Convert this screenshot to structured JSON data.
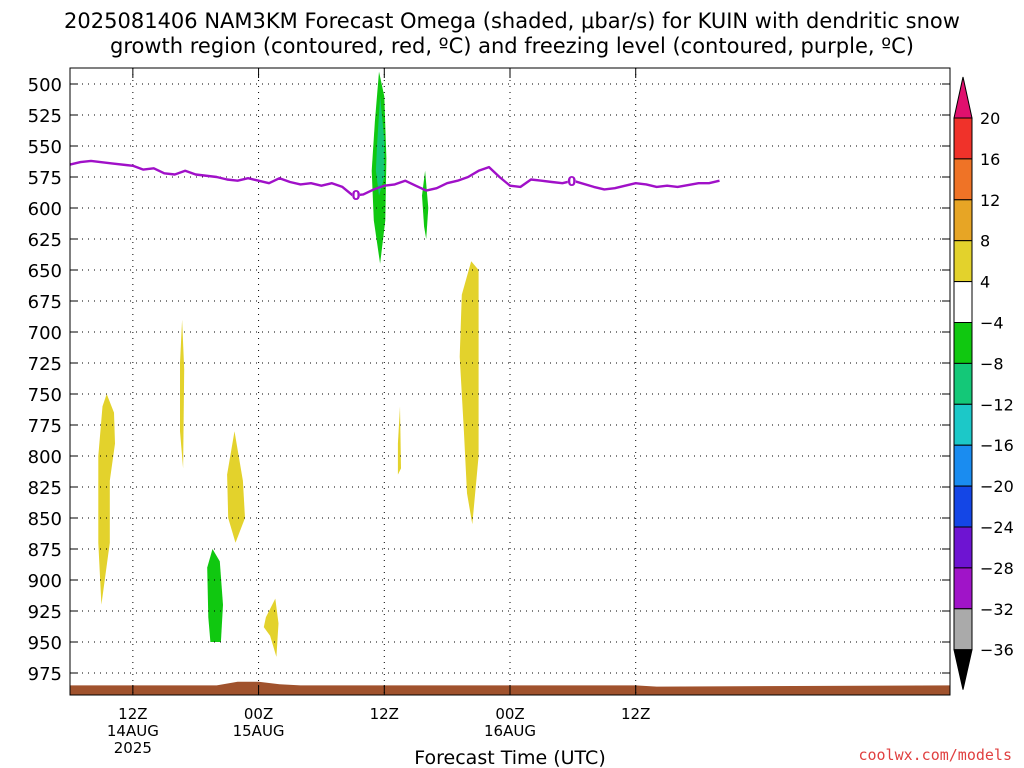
{
  "title_line1": "2025081406 NAM3KM Forecast Omega (shaded, μbar/s) for KUIN with dendritic snow",
  "title_line2": "growth region (contoured, red, ºC) and freezing level (contoured, purple, ºC)",
  "watermark": "coolwx.com/models",
  "chart_data": {
    "type": "heatmap",
    "title": "2025081406 NAM3KM Forecast Omega (shaded, μbar/s) for KUIN with dendritic snow growth region (contoured, red, ºC) and freezing level (contoured, purple, ºC)",
    "xlabel": "Forecast Time (UTC)",
    "ylabel": "",
    "x_unit": "hours since 2025-08-14 00Z",
    "xlim": [
      6,
      90
    ],
    "ylim": [
      500,
      985
    ],
    "y_reversed": true,
    "grid": true,
    "y_ticks": [
      500,
      525,
      550,
      575,
      600,
      625,
      650,
      675,
      700,
      725,
      750,
      775,
      800,
      825,
      850,
      875,
      900,
      925,
      950,
      975
    ],
    "x_ticks": [
      {
        "x": 12,
        "lines": [
          "12Z",
          "14AUG",
          "2025"
        ]
      },
      {
        "x": 24,
        "lines": [
          "00Z",
          "15AUG"
        ]
      },
      {
        "x": 36,
        "lines": [
          "12Z"
        ]
      },
      {
        "x": 48,
        "lines": [
          "00Z",
          "16AUG"
        ]
      },
      {
        "x": 60,
        "lines": [
          "12Z"
        ]
      }
    ],
    "colorbar": {
      "labels": [
        20,
        16,
        12,
        8,
        4,
        -4,
        -8,
        -12,
        -16,
        -20,
        -24,
        -28,
        -32,
        -36
      ],
      "colors": [
        "#e0106e",
        "#f0322a",
        "#ef7326",
        "#e7a525",
        "#e3d22c",
        "#ffffff",
        "#10c810",
        "#14c878",
        "#1cc8c8",
        "#1a8cf0",
        "#1446e6",
        "#6e14d2",
        "#a014c8",
        "#aaaaaa",
        "#000000"
      ]
    },
    "freezing_level": {
      "color": "#a010c8",
      "label": "0",
      "label_x": [
        33.3,
        53.9
      ],
      "points": [
        [
          6,
          565
        ],
        [
          7,
          563
        ],
        [
          8,
          562
        ],
        [
          10,
          564
        ],
        [
          12,
          566
        ],
        [
          13,
          569
        ],
        [
          14,
          568
        ],
        [
          15,
          572
        ],
        [
          16,
          573
        ],
        [
          17,
          570
        ],
        [
          18,
          573
        ],
        [
          20,
          575
        ],
        [
          21,
          577
        ],
        [
          22,
          578
        ],
        [
          23,
          576
        ],
        [
          24,
          578
        ],
        [
          25,
          580
        ],
        [
          26,
          576
        ],
        [
          27,
          579
        ],
        [
          28,
          581
        ],
        [
          29,
          580
        ],
        [
          30,
          582
        ],
        [
          31,
          580
        ],
        [
          32,
          583
        ],
        [
          33,
          590
        ],
        [
          34,
          589
        ],
        [
          35,
          585
        ],
        [
          36,
          582
        ],
        [
          37,
          581
        ],
        [
          38,
          578
        ],
        [
          39,
          582
        ],
        [
          40,
          586
        ],
        [
          41,
          584
        ],
        [
          42,
          580
        ],
        [
          43,
          578
        ],
        [
          44,
          575
        ],
        [
          45,
          570
        ],
        [
          46,
          567
        ],
        [
          47,
          575
        ],
        [
          48,
          582
        ],
        [
          49,
          583
        ],
        [
          50,
          577
        ],
        [
          51,
          578
        ],
        [
          52,
          579
        ],
        [
          53,
          580
        ],
        [
          54,
          578
        ],
        [
          56,
          583
        ],
        [
          57,
          585
        ],
        [
          58,
          584
        ],
        [
          59,
          582
        ],
        [
          60,
          580
        ],
        [
          61,
          581
        ],
        [
          62,
          583
        ],
        [
          63,
          582
        ],
        [
          64,
          583
        ],
        [
          66,
          580
        ],
        [
          67,
          580
        ],
        [
          68,
          578
        ]
      ]
    },
    "omega_shaded": [
      {
        "value_bin": "4 to 8",
        "color": "#e3d22c",
        "points": [
          [
            9.1,
            760
          ],
          [
            9.5,
            750
          ],
          [
            10.2,
            765
          ],
          [
            10.3,
            790
          ],
          [
            9.8,
            820
          ],
          [
            9.8,
            870
          ],
          [
            9.0,
            920
          ],
          [
            8.7,
            870
          ],
          [
            8.7,
            800
          ]
        ]
      },
      {
        "value_bin": "4 to 8",
        "color": "#e3d22c",
        "points": [
          [
            16.5,
            725
          ],
          [
            16.7,
            690
          ],
          [
            16.9,
            730
          ],
          [
            16.8,
            810
          ],
          [
            16.5,
            780
          ]
        ]
      },
      {
        "value_bin": "4 to 8",
        "color": "#e3d22c",
        "points": [
          [
            21.0,
            815
          ],
          [
            21.7,
            780
          ],
          [
            22.5,
            820
          ],
          [
            22.7,
            850
          ],
          [
            21.8,
            870
          ],
          [
            21.1,
            850
          ]
        ]
      },
      {
        "value_bin": "4 to 8",
        "color": "#e3d22c",
        "points": [
          [
            24.7,
            930
          ],
          [
            25.6,
            915
          ],
          [
            25.9,
            935
          ],
          [
            25.7,
            962
          ],
          [
            25.1,
            945
          ],
          [
            24.5,
            938
          ]
        ]
      },
      {
        "value_bin": "4 to 8",
        "color": "#e3d22c",
        "points": [
          [
            37.3,
            790
          ],
          [
            37.5,
            760
          ],
          [
            37.6,
            810
          ],
          [
            37.3,
            815
          ]
        ]
      },
      {
        "value_bin": "4 to 8",
        "color": "#e3d22c",
        "points": [
          [
            43.4,
            670
          ],
          [
            44.3,
            643
          ],
          [
            45.0,
            650
          ],
          [
            45.0,
            800
          ],
          [
            44.4,
            855
          ],
          [
            43.9,
            830
          ],
          [
            43.6,
            780
          ],
          [
            43.2,
            720
          ]
        ]
      },
      {
        "value_bin": "-8 to -4",
        "color": "#10c810",
        "points": [
          [
            19.1,
            890
          ],
          [
            19.6,
            875
          ],
          [
            20.3,
            885
          ],
          [
            20.6,
            920
          ],
          [
            20.4,
            950
          ],
          [
            19.4,
            950
          ],
          [
            19.2,
            930
          ]
        ]
      },
      {
        "value_bin": "-8 to -4",
        "color": "#10c810",
        "points": [
          [
            35.1,
            530
          ],
          [
            35.5,
            490
          ],
          [
            36.0,
            510
          ],
          [
            36.2,
            560
          ],
          [
            36.1,
            610
          ],
          [
            35.6,
            645
          ],
          [
            35.0,
            610
          ],
          [
            34.8,
            570
          ]
        ]
      },
      {
        "value_bin": "-8 to -4",
        "color": "#10c810",
        "points": [
          [
            39.6,
            590
          ],
          [
            39.9,
            570
          ],
          [
            40.2,
            600
          ],
          [
            40.0,
            625
          ],
          [
            39.8,
            615
          ]
        ]
      },
      {
        "value_bin": "-12 to -8",
        "color": "#14c878",
        "points": [
          [
            35.3,
            550
          ],
          [
            35.6,
            510
          ],
          [
            36.0,
            545
          ],
          [
            36.0,
            575
          ],
          [
            35.5,
            590
          ],
          [
            35.2,
            570
          ]
        ]
      }
    ],
    "terrain": {
      "color": "#a0522d",
      "points": [
        [
          6,
          985
        ],
        [
          20,
          985
        ],
        [
          22,
          982
        ],
        [
          24,
          982
        ],
        [
          26,
          984
        ],
        [
          28,
          985
        ],
        [
          60,
          985
        ],
        [
          62,
          986
        ],
        [
          90,
          985
        ]
      ]
    }
  }
}
